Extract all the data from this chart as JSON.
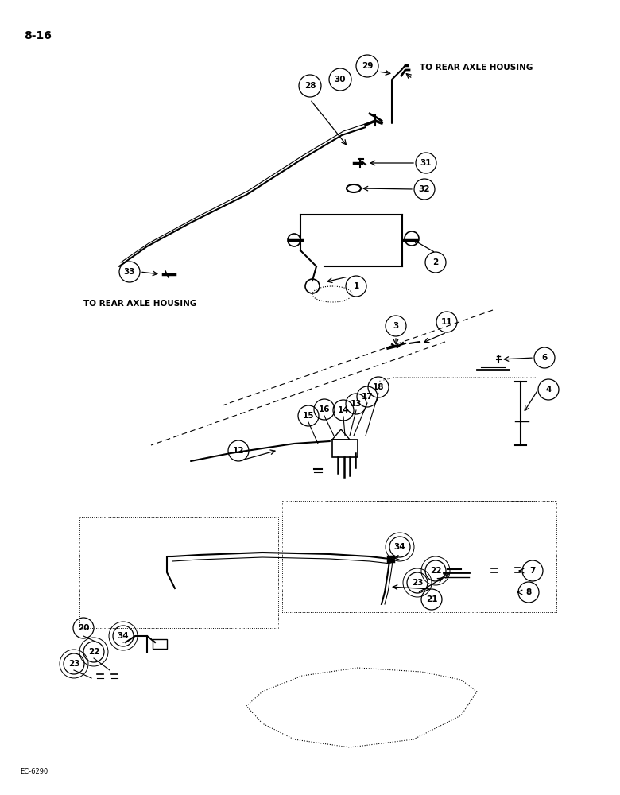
{
  "page_label": "8-16",
  "footer_label": "EC-6290",
  "bg_color": "#ffffff",
  "label_top_right": "TO REAR AXLE HOUSING",
  "label_mid_left": "TO REAR AXLE HOUSING",
  "figsize": [
    7.8,
    10.0
  ],
  "dpi": 100
}
